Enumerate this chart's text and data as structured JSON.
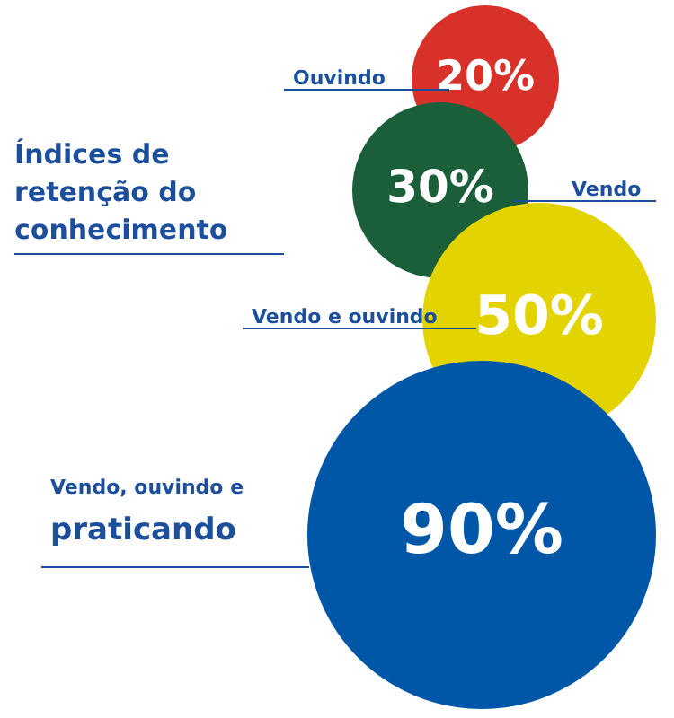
{
  "chart_data": {
    "type": "other",
    "title": "Índices de retenção do conhecimento",
    "categories": [
      "Ouvindo",
      "Vendo",
      "Vendo e ouvindo",
      "Vendo, ouvindo e praticando"
    ],
    "values": [
      20,
      30,
      50,
      90
    ],
    "value_labels": [
      "20%",
      "30%",
      "50%",
      "90%"
    ],
    "colors": [
      "#d7312a",
      "#1a5e3a",
      "#e3d300",
      "#0057a8"
    ]
  }
}
